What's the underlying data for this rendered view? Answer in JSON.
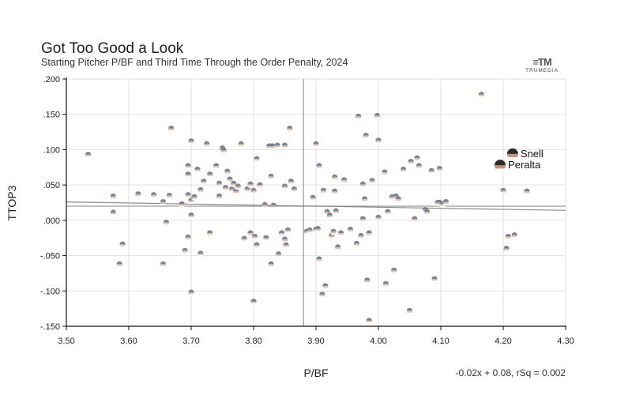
{
  "header": {
    "title": "Got Too Good a Look",
    "subtitle": "Starting Pitcher P/BF and Third Time Through the Order Penalty, 2024"
  },
  "logo": {
    "mark": "≡TM",
    "text": "TRUMEDIA"
  },
  "chart_data": {
    "type": "scatter",
    "title": "Got Too Good a Look",
    "subtitle": "Starting Pitcher P/BF and Third Time Through the Order Penalty, 2024",
    "xlabel": "P/BF",
    "ylabel": "TTOP3",
    "xlim": [
      3.5,
      4.3
    ],
    "ylim": [
      -0.15,
      0.2
    ],
    "x_ticks": [
      3.5,
      3.6,
      3.7,
      3.8,
      3.9,
      4.0,
      4.1,
      4.2,
      4.3
    ],
    "x_tick_labels": [
      "3.50",
      "3.60",
      "3.70",
      "3.80",
      "3.90",
      "4.00",
      "4.10",
      "4.20",
      "4.30"
    ],
    "y_ticks": [
      0.2,
      0.15,
      0.1,
      0.05,
      0.0,
      -0.05,
      -0.1,
      -0.15
    ],
    "y_tick_labels": [
      ".200",
      ".150",
      ".100",
      ".050",
      ".000",
      "-.050",
      "-.100",
      "-.150"
    ],
    "mean_x": 3.88,
    "mean_y": 0.02,
    "trendline": {
      "equation": "-0.02x + 0.08, rSq = 0.002",
      "x": [
        3.5,
        4.3
      ],
      "y": [
        0.026,
        0.014
      ]
    },
    "colors": {
      "grid": "#e2e2e2",
      "axis": "#111111",
      "mean": "#9a9a9a",
      "trend": "#8a8a8a",
      "skin": "#d9b8a3",
      "cap": "#6f7d96",
      "highlight_skin": "#b98464",
      "highlight_cap": "#1e1e1e"
    },
    "highlighted": [
      {
        "name": "Snell",
        "x": 4.215,
        "y": 0.094
      },
      {
        "name": "Peralta",
        "x": 4.195,
        "y": 0.078
      }
    ],
    "points": [
      [
        3.535,
        0.093
      ],
      [
        3.575,
        0.034
      ],
      [
        3.575,
        0.011
      ],
      [
        3.59,
        -0.034
      ],
      [
        3.585,
        -0.062
      ],
      [
        3.615,
        0.037
      ],
      [
        3.64,
        0.036
      ],
      [
        3.655,
        0.026
      ],
      [
        3.655,
        -0.062
      ],
      [
        3.66,
        -0.003
      ],
      [
        3.668,
        0.13
      ],
      [
        3.665,
        0.035
      ],
      [
        3.685,
        0.023
      ],
      [
        3.69,
        -0.043
      ],
      [
        3.695,
        0.077
      ],
      [
        3.695,
        0.065
      ],
      [
        3.695,
        0.036
      ],
      [
        3.7,
        0.112
      ],
      [
        3.7,
        0.028
      ],
      [
        3.7,
        0.007
      ],
      [
        3.695,
        -0.024
      ],
      [
        3.7,
        -0.102
      ],
      [
        3.705,
        0.033
      ],
      [
        3.71,
        0.072
      ],
      [
        3.715,
        0.043
      ],
      [
        3.715,
        -0.047
      ],
      [
        3.72,
        0.055
      ],
      [
        3.725,
        0.108
      ],
      [
        3.73,
        0.065
      ],
      [
        3.73,
        -0.018
      ],
      [
        3.74,
        0.077
      ],
      [
        3.745,
        0.034
      ],
      [
        3.745,
        0.052
      ],
      [
        3.75,
        0.102
      ],
      [
        3.752,
        0.099
      ],
      [
        3.755,
        0.046
      ],
      [
        3.758,
        0.069
      ],
      [
        3.762,
        0.058
      ],
      [
        3.765,
        0.044
      ],
      [
        3.768,
        0.052
      ],
      [
        3.772,
        0.041
      ],
      [
        3.775,
        0.048
      ],
      [
        3.78,
        0.108
      ],
      [
        3.785,
        -0.026
      ],
      [
        3.79,
        0.044
      ],
      [
        3.795,
        -0.018
      ],
      [
        3.795,
        0.051
      ],
      [
        3.8,
        -0.115
      ],
      [
        3.8,
        0.042
      ],
      [
        3.802,
        -0.023
      ],
      [
        3.805,
        0.087
      ],
      [
        3.805,
        -0.035
      ],
      [
        3.81,
        0.05
      ],
      [
        3.818,
        0.022
      ],
      [
        3.82,
        -0.025
      ],
      [
        3.825,
        0.105
      ],
      [
        3.828,
        0.062
      ],
      [
        3.83,
        0.105
      ],
      [
        3.828,
        -0.062
      ],
      [
        3.832,
        0.021
      ],
      [
        3.838,
        0.106
      ],
      [
        3.84,
        -0.048
      ],
      [
        3.845,
        -0.018
      ],
      [
        3.85,
        0.106
      ],
      [
        3.85,
        0.048
      ],
      [
        3.85,
        -0.027
      ],
      [
        3.852,
        -0.035
      ],
      [
        3.855,
        -0.014
      ],
      [
        3.858,
        0.13
      ],
      [
        3.86,
        0.055
      ],
      [
        3.865,
        0.044
      ],
      [
        3.885,
        -0.016
      ],
      [
        3.89,
        -0.014
      ],
      [
        3.895,
        0.032
      ],
      [
        3.9,
        0.108
      ],
      [
        3.9,
        -0.013
      ],
      [
        3.903,
        -0.012
      ],
      [
        3.905,
        0.077
      ],
      [
        3.905,
        -0.055
      ],
      [
        3.91,
        -0.105
      ],
      [
        3.912,
        0.042
      ],
      [
        3.915,
        -0.093
      ],
      [
        3.918,
        0.012
      ],
      [
        3.922,
        0.007
      ],
      [
        3.925,
        -0.022
      ],
      [
        3.928,
        -0.016
      ],
      [
        3.93,
        0.061
      ],
      [
        3.93,
        0.041
      ],
      [
        3.932,
        0.013
      ],
      [
        3.935,
        -0.038
      ],
      [
        3.94,
        -0.018
      ],
      [
        3.945,
        0.057
      ],
      [
        3.955,
        -0.013
      ],
      [
        3.965,
        -0.033
      ],
      [
        3.968,
        0.147
      ],
      [
        3.972,
        -0.022
      ],
      [
        3.975,
        0.002
      ],
      [
        3.975,
        0.051
      ],
      [
        3.978,
        0.03
      ],
      [
        3.98,
        0.12
      ],
      [
        3.982,
        -0.085
      ],
      [
        3.985,
        -0.142
      ],
      [
        3.985,
        -0.018
      ],
      [
        3.99,
        0.056
      ],
      [
        3.998,
        0.148
      ],
      [
        4.0,
        0.113
      ],
      [
        4.0,
        0.004
      ],
      [
        4.01,
        0.068
      ],
      [
        4.012,
        -0.09
      ],
      [
        4.015,
        0.012
      ],
      [
        4.022,
        0.033
      ],
      [
        4.025,
        -0.071
      ],
      [
        4.028,
        0.034
      ],
      [
        4.032,
        0.03
      ],
      [
        4.04,
        0.072
      ],
      [
        4.05,
        -0.128
      ],
      [
        4.052,
        0.083
      ],
      [
        4.058,
        0.002
      ],
      [
        4.062,
        0.088
      ],
      [
        4.065,
        0.077
      ],
      [
        4.075,
        0.015
      ],
      [
        4.078,
        0.012
      ],
      [
        4.085,
        0.07
      ],
      [
        4.09,
        -0.083
      ],
      [
        4.095,
        0.025
      ],
      [
        4.098,
        0.073
      ],
      [
        4.098,
        0.025
      ],
      [
        4.103,
        0.023
      ],
      [
        4.108,
        0.026
      ],
      [
        4.165,
        0.178
      ],
      [
        4.2,
        0.042
      ],
      [
        4.205,
        -0.04
      ],
      [
        4.208,
        -0.023
      ],
      [
        4.218,
        -0.021
      ],
      [
        4.238,
        0.041
      ]
    ]
  }
}
